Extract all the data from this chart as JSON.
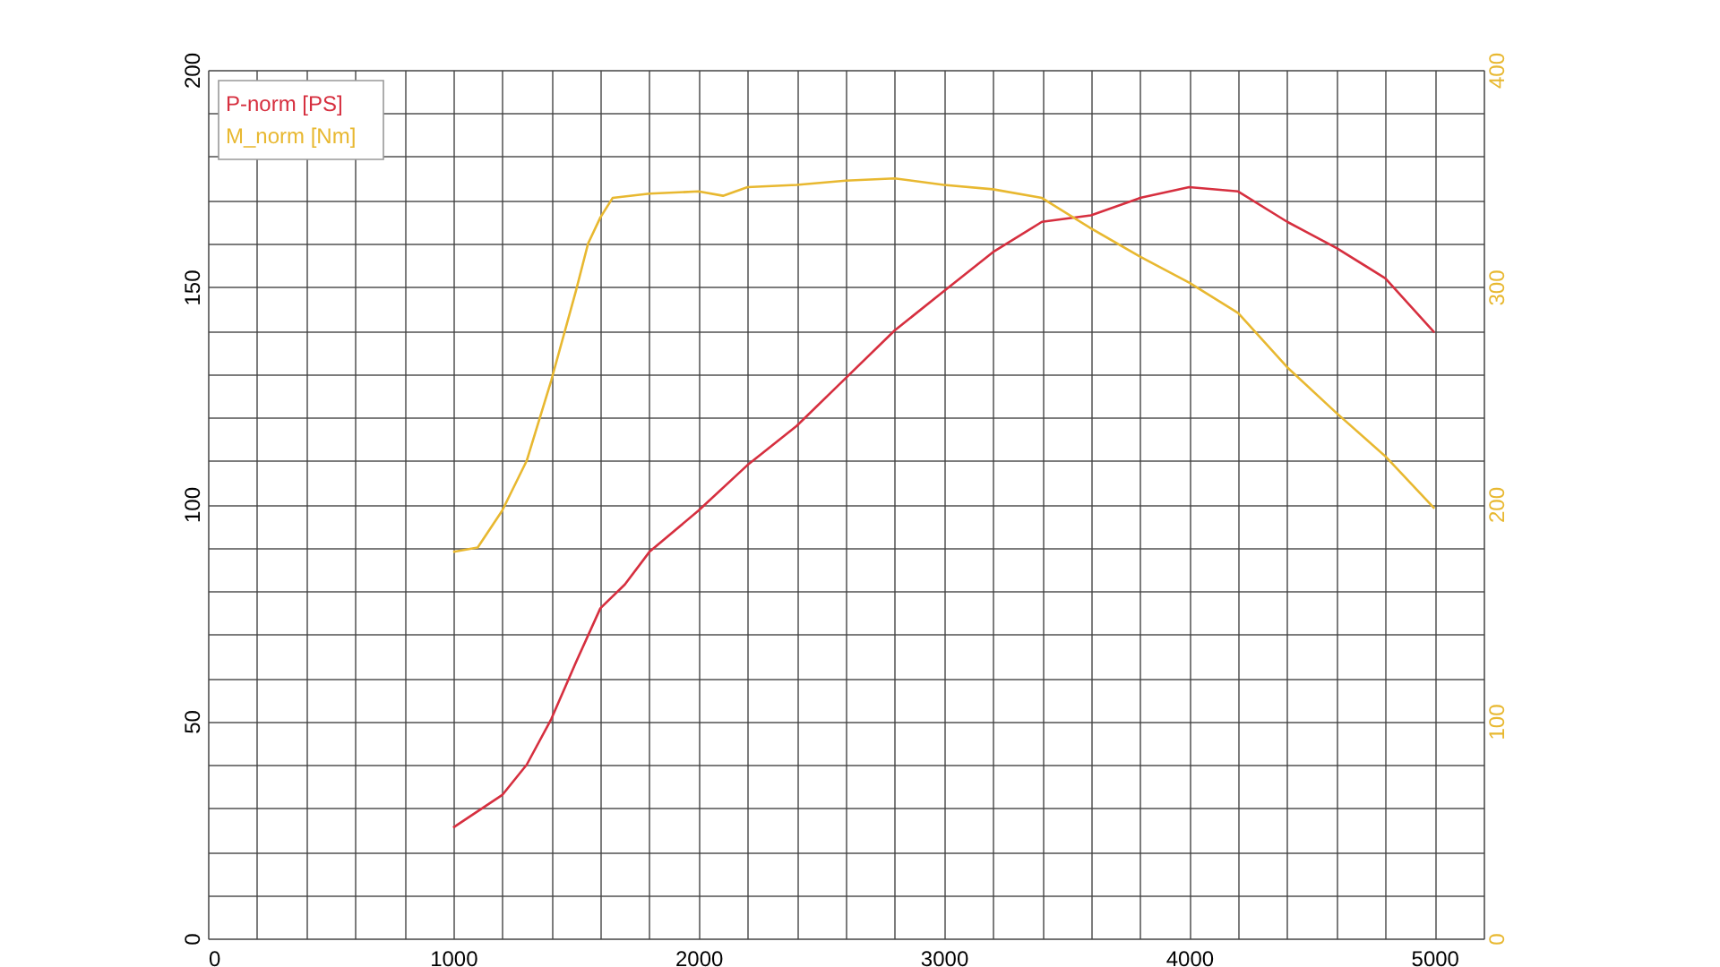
{
  "chart_data": {
    "type": "line",
    "xlim": [
      0,
      5200
    ],
    "ylim": [
      0,
      200
    ],
    "y2lim": [
      0,
      400
    ],
    "xticks": [
      0,
      {
        "value": 200,
        "label": null
      },
      {
        "value": 400,
        "label": null
      },
      {
        "value": 600,
        "label": null
      },
      {
        "value": 800,
        "label": null
      },
      1000,
      {
        "value": 1200,
        "label": null
      },
      {
        "value": 1400,
        "label": null
      },
      {
        "value": 1600,
        "label": null
      },
      {
        "value": 1800,
        "label": null
      },
      2000,
      {
        "value": 2200,
        "label": null
      },
      {
        "value": 2400,
        "label": null
      },
      {
        "value": 2600,
        "label": null
      },
      {
        "value": 2800,
        "label": null
      },
      3000,
      {
        "value": 3200,
        "label": null
      },
      {
        "value": 3400,
        "label": null
      },
      {
        "value": 3600,
        "label": null
      },
      {
        "value": 3800,
        "label": null
      },
      4000,
      {
        "value": 4200,
        "label": null
      },
      {
        "value": 4400,
        "label": null
      },
      {
        "value": 4600,
        "label": null
      },
      {
        "value": 4800,
        "label": null
      },
      5000,
      {
        "value": 5200,
        "label": null
      }
    ],
    "yticks": [
      0,
      {
        "value": 10,
        "label": null
      },
      {
        "value": 20,
        "label": null
      },
      {
        "value": 30,
        "label": null
      },
      {
        "value": 40,
        "label": null
      },
      50,
      {
        "value": 60,
        "label": null
      },
      {
        "value": 70,
        "label": null
      },
      {
        "value": 80,
        "label": null
      },
      {
        "value": 90,
        "label": null
      },
      100,
      {
        "value": 110,
        "label": null
      },
      {
        "value": 120,
        "label": null
      },
      {
        "value": 130,
        "label": null
      },
      {
        "value": 140,
        "label": null
      },
      150,
      {
        "value": 160,
        "label": null
      },
      {
        "value": 170,
        "label": null
      },
      {
        "value": 180,
        "label": null
      },
      {
        "value": 190,
        "label": null
      },
      200
    ],
    "y2ticks": [
      0,
      100,
      200,
      300,
      400
    ],
    "grid": true,
    "legend": "top left",
    "marker": "none",
    "line_style": "solid",
    "series": [
      {
        "name": "P-norm [PS]",
        "color": "#d62f3f",
        "x": [
          1000,
          1200,
          1300,
          1400,
          1500,
          1600,
          1700,
          1800,
          2000,
          2200,
          2400,
          2600,
          2800,
          3000,
          3200,
          3400,
          3600,
          3800,
          4000,
          4200,
          4400,
          4600,
          4800,
          5000
        ],
        "values": [
          25.5,
          33,
          40,
          50.5,
          63.5,
          76,
          81.5,
          89,
          98.5,
          109,
          118,
          129,
          140,
          149,
          158,
          165,
          166.5,
          170.5,
          173,
          172,
          165,
          159,
          152,
          139.5
        ]
      },
      {
        "name": "M_norm [Nm]",
        "color": "#e8b830",
        "axis": "y2",
        "x": [
          1000,
          1100,
          1200,
          1300,
          1400,
          1500,
          1550,
          1600,
          1650,
          1800,
          2000,
          2100,
          2200,
          2400,
          2600,
          2800,
          3000,
          3200,
          3400,
          3600,
          3800,
          4000,
          4200,
          4400,
          4600,
          4800,
          5000
        ],
        "values": [
          178,
          180,
          197,
          220,
          257,
          298,
          320,
          332,
          341,
          343,
          344,
          342,
          346,
          347,
          349,
          350,
          347,
          345,
          341,
          327,
          314,
          302,
          288,
          263,
          242,
          222,
          198
        ]
      }
    ]
  }
}
